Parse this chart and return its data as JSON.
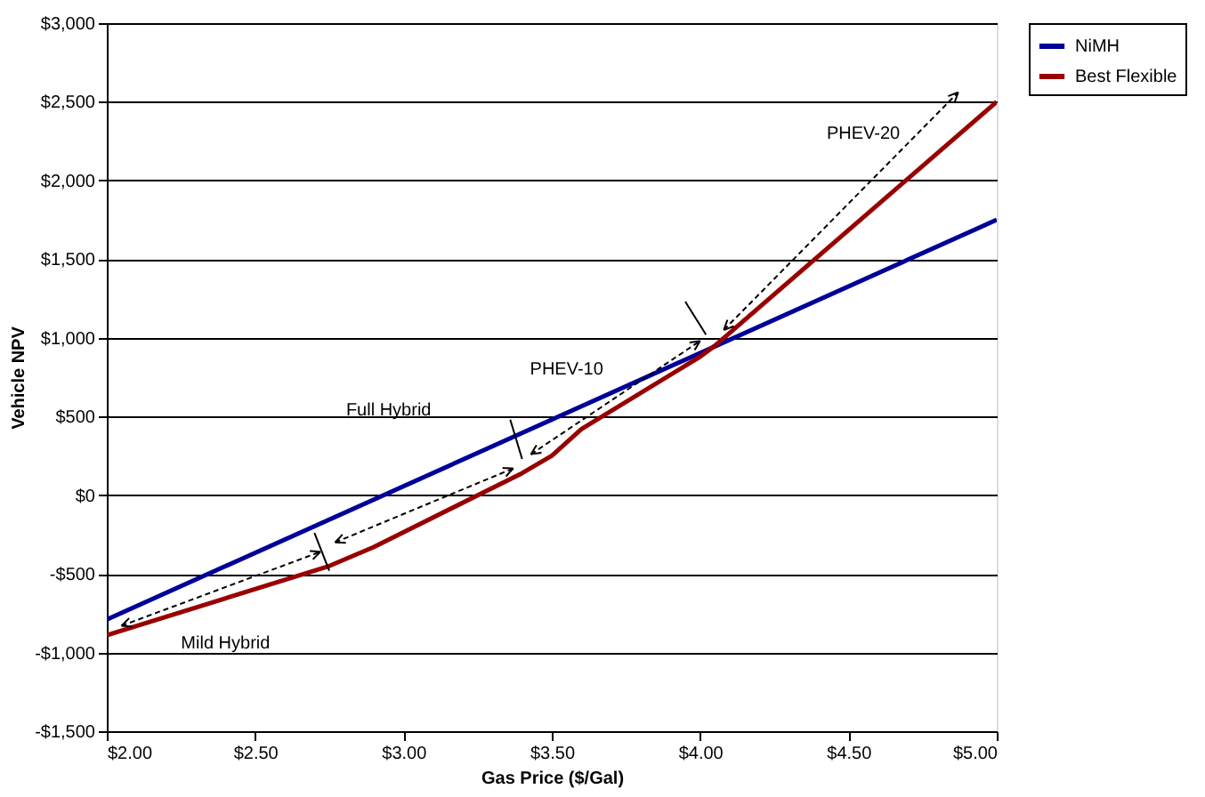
{
  "chart_data": {
    "type": "line",
    "xlabel": "Gas Price ($/Gal)",
    "ylabel": "Vehicle NPV",
    "series": [
      {
        "name": "NiMH",
        "color": "#000099",
        "x": [
          2.0,
          5.0
        ],
        "values": [
          -790,
          1750
        ]
      },
      {
        "name": "Best Flexible",
        "color": "#990000",
        "x": [
          2.0,
          2.75,
          2.9,
          3.4,
          3.5,
          3.6,
          4.0,
          4.05,
          5.0
        ],
        "values": [
          -890,
          -450,
          -330,
          140,
          250,
          420,
          880,
          950,
          2500
        ]
      }
    ],
    "xlim": [
      2.0,
      5.0
    ],
    "xticks": [
      {
        "value": 2.0,
        "label": "$2.00"
      },
      {
        "value": 2.5,
        "label": "$2.50"
      },
      {
        "value": 3.0,
        "label": "$3.00"
      },
      {
        "value": 3.5,
        "label": "$3.50"
      },
      {
        "value": 4.0,
        "label": "$4.00"
      },
      {
        "value": 4.5,
        "label": "$4.50"
      },
      {
        "value": 5.0,
        "label": "$5.00"
      }
    ],
    "ylim": [
      -1500,
      3000
    ],
    "yticks": [
      {
        "value": -1500,
        "label": "-$1,500"
      },
      {
        "value": -1000,
        "label": "-$1,000"
      },
      {
        "value": -500,
        "label": "-$500"
      },
      {
        "value": 0,
        "label": "$0"
      },
      {
        "value": 500,
        "label": "$500"
      },
      {
        "value": 1000,
        "label": "$1,000"
      },
      {
        "value": 1500,
        "label": "$1,500"
      },
      {
        "value": 2000,
        "label": "$2,000"
      },
      {
        "value": 2500,
        "label": "$2,500"
      },
      {
        "value": 3000,
        "label": "$3,000"
      }
    ],
    "grid": "y",
    "legend": "right",
    "line_style": "solid",
    "marker": "none",
    "annotations": [
      "PHEV-20",
      "PHEV-10",
      "Full Hybrid",
      "Mild Hybrid"
    ]
  }
}
